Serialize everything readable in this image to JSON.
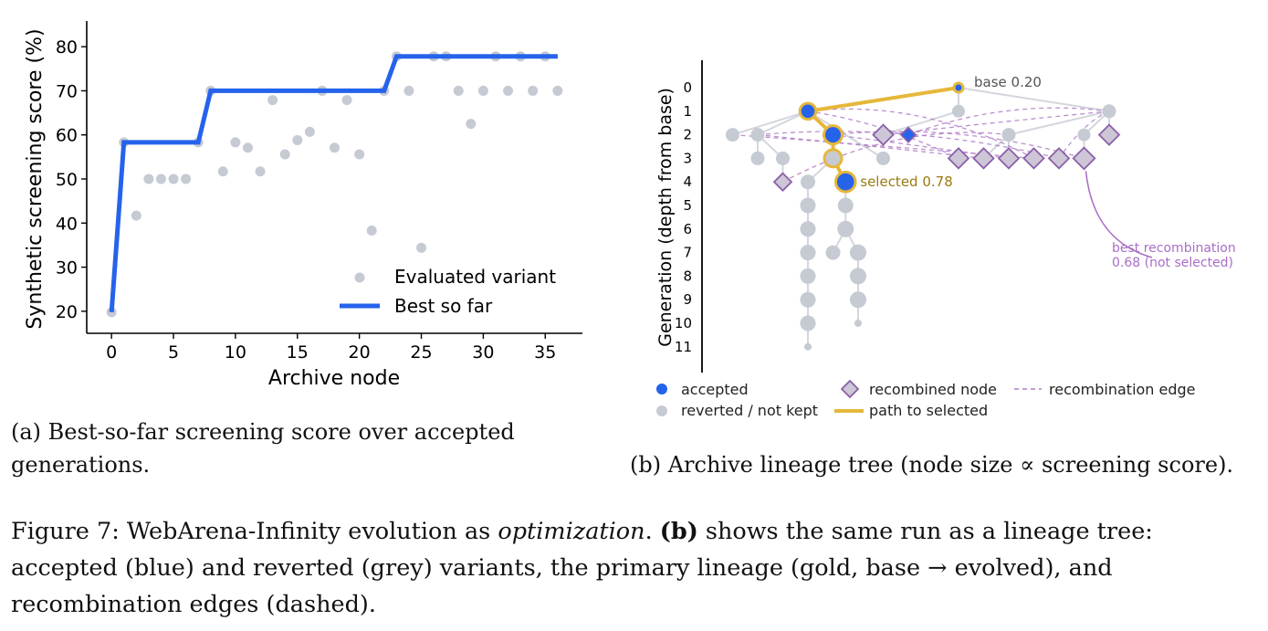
{
  "chart_data": [
    {
      "type": "scatter",
      "panel": "a",
      "ylabel": "Synthetic screening score (%)",
      "xlabel": "Archive node",
      "xlim": [
        -2,
        38
      ],
      "ylim": [
        15,
        85
      ],
      "xticks": [
        0,
        5,
        10,
        15,
        20,
        25,
        30,
        35
      ],
      "yticks": [
        20,
        30,
        40,
        50,
        60,
        70,
        80
      ],
      "grid": false,
      "legend_position": "lower-right",
      "legend": [
        "Evaluated variant",
        "Best so far"
      ],
      "colors": {
        "scatter": "#c5cad3",
        "line": "#2563eb"
      },
      "series": [
        {
          "name": "Evaluated variant",
          "type": "scatter",
          "points": [
            [
              0,
              19.8
            ],
            [
              1,
              58.3
            ],
            [
              2,
              41.7
            ],
            [
              3,
              50
            ],
            [
              4,
              50
            ],
            [
              5,
              50
            ],
            [
              6,
              50
            ],
            [
              7,
              58.3
            ],
            [
              8,
              70
            ],
            [
              9,
              51.7
            ],
            [
              10,
              58.3
            ],
            [
              11,
              57.1
            ],
            [
              12,
              51.7
            ],
            [
              13,
              67.9
            ],
            [
              14,
              55.6
            ],
            [
              15,
              58.8
            ],
            [
              16,
              60.7
            ],
            [
              17,
              70
            ],
            [
              18,
              57.1
            ],
            [
              19,
              67.9
            ],
            [
              20,
              55.6
            ],
            [
              21,
              38.3
            ],
            [
              22,
              70
            ],
            [
              23,
              77.8
            ],
            [
              24,
              70
            ],
            [
              25,
              34.4
            ],
            [
              26,
              77.8
            ],
            [
              27,
              77.8
            ],
            [
              28,
              70
            ],
            [
              29,
              62.5
            ],
            [
              30,
              70
            ],
            [
              31,
              77.8
            ],
            [
              32,
              70
            ],
            [
              33,
              77.8
            ],
            [
              34,
              70
            ],
            [
              35,
              77.8
            ],
            [
              36,
              70
            ]
          ]
        },
        {
          "name": "Best so far",
          "type": "line",
          "points": [
            [
              0,
              19.8
            ],
            [
              1,
              58.3
            ],
            [
              7,
              58.3
            ],
            [
              8,
              70
            ],
            [
              22,
              70
            ],
            [
              23,
              77.8
            ],
            [
              36,
              77.8
            ]
          ]
        }
      ]
    },
    {
      "type": "tree",
      "panel": "b",
      "ylabel": "Generation (depth from base)",
      "yticks": [
        0,
        1,
        2,
        3,
        4,
        5,
        6,
        7,
        8,
        9,
        10,
        11
      ],
      "colors": {
        "accepted": "#2563eb",
        "reverted": "#c5cad3",
        "path": "#e6b73a",
        "recombined_fill": "#cdc6d6",
        "recombined_edge": "#8b5fa8",
        "recombination_edge": "#b07cc6",
        "annotation_selected": "#9a7a10",
        "annotation_recomb": "#a96ec6",
        "base_label": "#555555"
      },
      "annotations": {
        "base": "base 0.20",
        "selected": "selected 0.78",
        "best_recomb_line1": "best recombination",
        "best_recomb_line2": "0.68 (not selected)"
      },
      "legend": {
        "accepted": "accepted",
        "reverted": "reverted / not kept",
        "recombined": "recombined node",
        "path": "path to selected",
        "recomb_edge": "recombination edge"
      },
      "nodes": [
        {
          "id": "base",
          "gen": 0,
          "col": 10,
          "kind": "accepted",
          "score": 0.2,
          "on_path": true
        },
        {
          "id": "n1",
          "gen": 1,
          "col": 4,
          "kind": "accepted",
          "score": 0.58,
          "on_path": true
        },
        {
          "id": "n1b",
          "gen": 1,
          "col": 10,
          "kind": "reverted",
          "score": 0.4
        },
        {
          "id": "n1c",
          "gen": 1,
          "col": 16,
          "kind": "reverted",
          "score": 0.45
        },
        {
          "id": "g2a",
          "gen": 2,
          "col": 1,
          "kind": "reverted",
          "score": 0.45
        },
        {
          "id": "g2b",
          "gen": 2,
          "col": 2,
          "kind": "reverted",
          "score": 0.45
        },
        {
          "id": "n2",
          "gen": 2,
          "col": 5,
          "kind": "accepted",
          "score": 0.7,
          "on_path": true
        },
        {
          "id": "r2a",
          "gen": 2,
          "col": 7,
          "kind": "recombined",
          "score": 0.6
        },
        {
          "id": "r2b",
          "gen": 2,
          "col": 8,
          "kind": "accepted_diamond",
          "score": 0.5
        },
        {
          "id": "g2c",
          "gen": 2,
          "col": 12,
          "kind": "reverted",
          "score": 0.45
        },
        {
          "id": "g2d",
          "gen": 2,
          "col": 15,
          "kind": "reverted",
          "score": 0.4
        },
        {
          "id": "r2c",
          "gen": 2,
          "col": 16,
          "kind": "recombined",
          "score": 0.6
        },
        {
          "id": "g3a",
          "gen": 3,
          "col": 2,
          "kind": "reverted",
          "score": 0.45
        },
        {
          "id": "g3b",
          "gen": 3,
          "col": 3,
          "kind": "reverted",
          "score": 0.45
        },
        {
          "id": "n3",
          "gen": 3,
          "col": 5,
          "kind": "reverted_path",
          "score": 0.65,
          "on_path": true
        },
        {
          "id": "g3c",
          "gen": 3,
          "col": 7,
          "kind": "reverted",
          "score": 0.45
        },
        {
          "id": "r3a",
          "gen": 3,
          "col": 10,
          "kind": "recombined",
          "score": 0.6
        },
        {
          "id": "r3b",
          "gen": 3,
          "col": 11,
          "kind": "recombined",
          "score": 0.6
        },
        {
          "id": "r3c",
          "gen": 3,
          "col": 12,
          "kind": "recombined",
          "score": 0.6
        },
        {
          "id": "r3d",
          "gen": 3,
          "col": 13,
          "kind": "recombined",
          "score": 0.6
        },
        {
          "id": "r3e",
          "gen": 3,
          "col": 14,
          "kind": "recombined",
          "score": 0.6
        },
        {
          "id": "r3f",
          "gen": 3,
          "col": 15,
          "kind": "recombined",
          "score": 0.68
        },
        {
          "id": "r4a",
          "gen": 4,
          "col": 3,
          "kind": "recombined",
          "score": 0.45
        },
        {
          "id": "g4a",
          "gen": 4,
          "col": 4,
          "kind": "reverted",
          "score": 0.5
        },
        {
          "id": "n4",
          "gen": 4,
          "col": 5.5,
          "kind": "accepted",
          "score": 0.78,
          "on_path": true
        },
        {
          "id": "a5",
          "gen": 5,
          "col": 4,
          "kind": "reverted",
          "score": 0.55
        },
        {
          "id": "a6",
          "gen": 6,
          "col": 4,
          "kind": "reverted",
          "score": 0.55
        },
        {
          "id": "a7",
          "gen": 7,
          "col": 4,
          "kind": "reverted",
          "score": 0.55
        },
        {
          "id": "a8",
          "gen": 8,
          "col": 4,
          "kind": "reverted",
          "score": 0.55
        },
        {
          "id": "a9",
          "gen": 9,
          "col": 4,
          "kind": "reverted",
          "score": 0.55
        },
        {
          "id": "a10",
          "gen": 10,
          "col": 4,
          "kind": "reverted",
          "score": 0.55
        },
        {
          "id": "a11",
          "gen": 11,
          "col": 4,
          "kind": "reverted",
          "score": 0.1
        },
        {
          "id": "b5",
          "gen": 5,
          "col": 5.5,
          "kind": "reverted",
          "score": 0.55
        },
        {
          "id": "b6",
          "gen": 6,
          "col": 5.5,
          "kind": "reverted",
          "score": 0.6
        },
        {
          "id": "c7",
          "gen": 7,
          "col": 5,
          "kind": "reverted",
          "score": 0.5
        },
        {
          "id": "d7",
          "gen": 7,
          "col": 6,
          "kind": "reverted",
          "score": 0.6
        },
        {
          "id": "d8",
          "gen": 8,
          "col": 6,
          "kind": "reverted",
          "score": 0.6
        },
        {
          "id": "d9",
          "gen": 9,
          "col": 6,
          "kind": "reverted",
          "score": 0.6
        },
        {
          "id": "d10",
          "gen": 10,
          "col": 6,
          "kind": "reverted",
          "score": 0.1
        }
      ],
      "tree_edges": [
        [
          "base",
          "n1"
        ],
        [
          "base",
          "n1b"
        ],
        [
          "base",
          "n1c"
        ],
        [
          "n1",
          "g2a"
        ],
        [
          "n1",
          "g2b"
        ],
        [
          "n1",
          "n2"
        ],
        [
          "n1",
          "g3c"
        ],
        [
          "g2b",
          "g3a"
        ],
        [
          "g2b",
          "g3b"
        ],
        [
          "n2",
          "n3"
        ],
        [
          "n3",
          "n4"
        ],
        [
          "n3",
          "g4a"
        ],
        [
          "g3b",
          "r4a"
        ],
        [
          "n1b",
          "r2a"
        ],
        [
          "n1c",
          "g2c"
        ],
        [
          "n1c",
          "g2d"
        ],
        [
          "n1c",
          "r2c"
        ],
        [
          "g2c",
          "r3b"
        ],
        [
          "g2c",
          "r3c"
        ],
        [
          "g2d",
          "r3f"
        ],
        [
          "g4a",
          "a5"
        ],
        [
          "a5",
          "a6"
        ],
        [
          "a6",
          "a7"
        ],
        [
          "a7",
          "a8"
        ],
        [
          "a8",
          "a9"
        ],
        [
          "a9",
          "a10"
        ],
        [
          "a10",
          "a11"
        ],
        [
          "n4",
          "b5"
        ],
        [
          "b5",
          "b6"
        ],
        [
          "b6",
          "c7"
        ],
        [
          "b6",
          "d7"
        ],
        [
          "d7",
          "d8"
        ],
        [
          "d8",
          "d9"
        ],
        [
          "d9",
          "d10"
        ]
      ],
      "path_edges": [
        [
          "base",
          "n1"
        ],
        [
          "n1",
          "n2"
        ],
        [
          "n2",
          "n3"
        ],
        [
          "n3",
          "n4"
        ]
      ],
      "recomb_edges": [
        [
          "n1",
          "r3a"
        ],
        [
          "n1",
          "r3d"
        ],
        [
          "g2b",
          "r3b"
        ],
        [
          "g2b",
          "r3e"
        ],
        [
          "n2",
          "r3c"
        ],
        [
          "n2",
          "r3f"
        ],
        [
          "n1c",
          "r3e"
        ],
        [
          "g2c",
          "r4a"
        ],
        [
          "n1c",
          "r2a"
        ],
        [
          "n1c",
          "r2b"
        ],
        [
          "g2a",
          "r3d"
        ]
      ]
    }
  ],
  "captions": {
    "a": "(a) Best-so-far screening score over accepted generations.",
    "b": "(b) Archive lineage tree (node size ∝ screening score).",
    "fig_prefix": "Figure 7: WebArena-Infinity evolution as ",
    "fig_italic": "optimization",
    "fig_mid": ". ",
    "fig_bold": "(b)",
    "fig_rest": " shows the same run as a lineage tree: accepted (blue) and reverted (grey) variants, the primary lineage (gold, base → evolved), and recombination edges (dashed)."
  }
}
